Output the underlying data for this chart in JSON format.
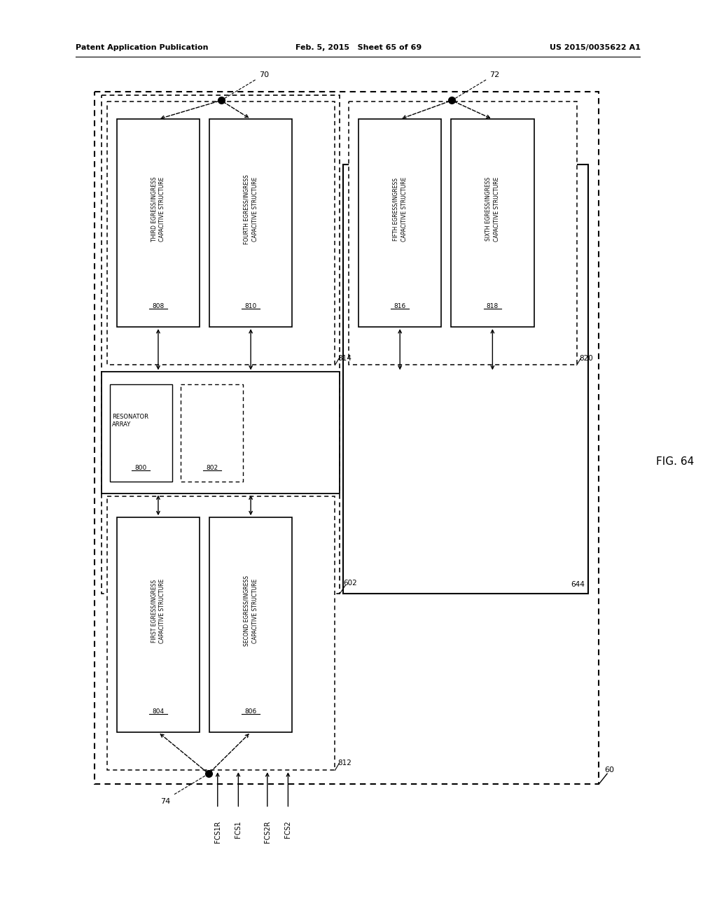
{
  "header_left": "Patent Application Publication",
  "header_center": "Feb. 5, 2015   Sheet 65 of 69",
  "header_right": "US 2015/0035622 A1",
  "background": "#ffffff",
  "fig_label": "FIG. 64"
}
